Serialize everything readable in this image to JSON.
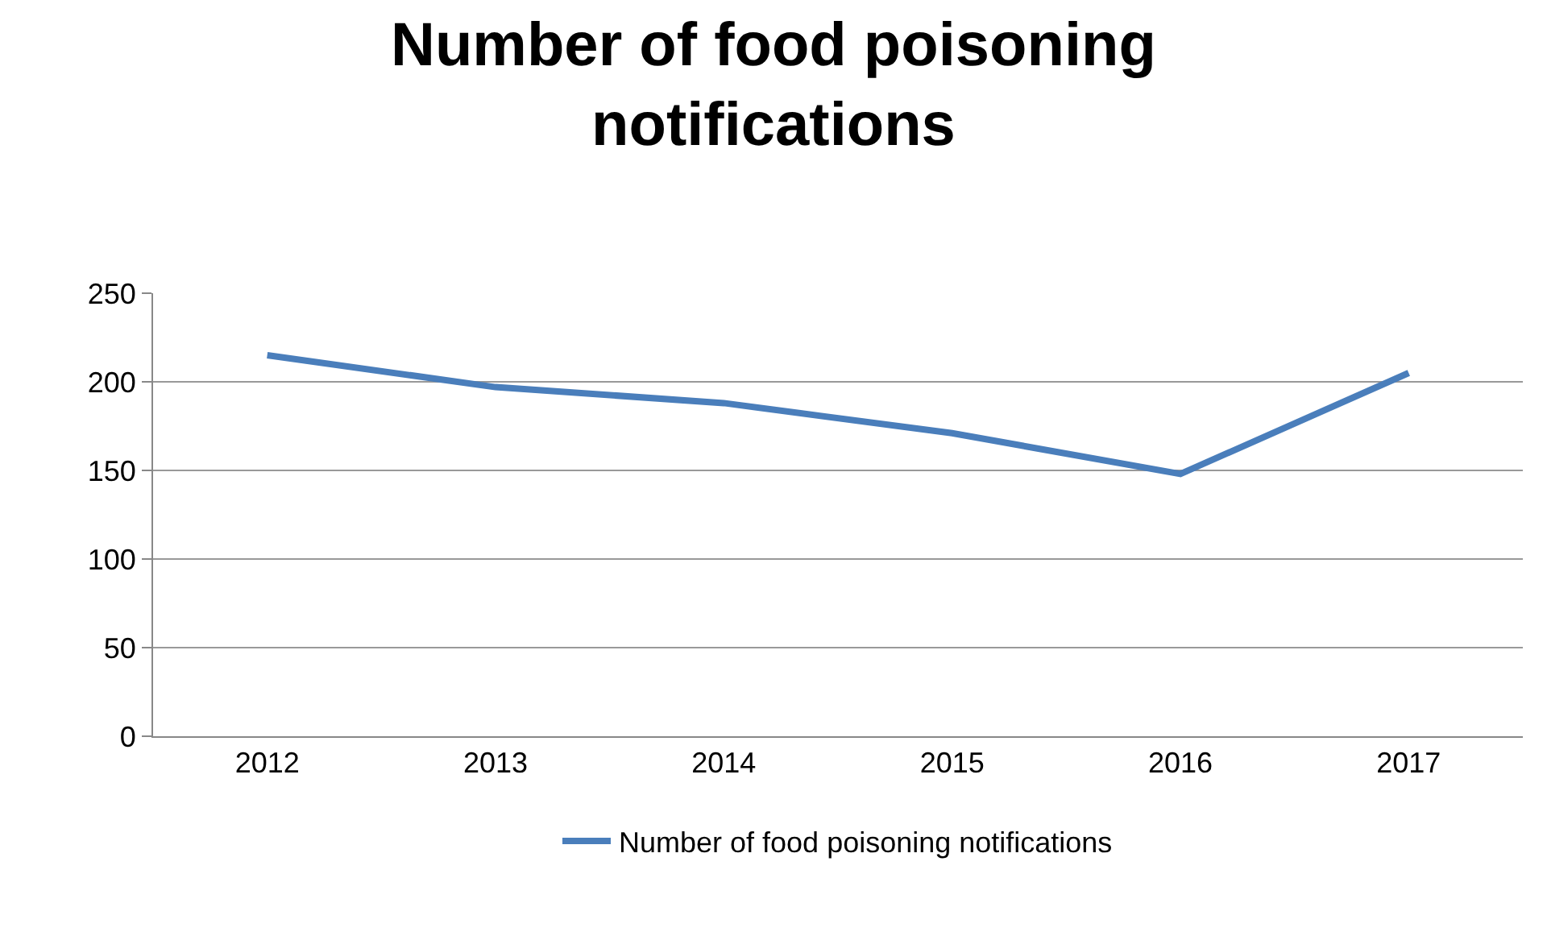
{
  "chart_data": {
    "type": "line",
    "title": "Number of food poisoning notifications",
    "categories": [
      "2012",
      "2013",
      "2014",
      "2015",
      "2016",
      "2017"
    ],
    "series": [
      {
        "name": "Number of food poisoning notifications",
        "color": "#4a7ebb",
        "values": [
          215,
          197,
          188,
          171,
          148,
          205
        ]
      }
    ],
    "ylim": [
      0,
      250
    ],
    "yticks": [
      0,
      50,
      100,
      150,
      200,
      250
    ],
    "grid": "y",
    "legend": "bottom",
    "marker": "none",
    "line_style": "solid"
  }
}
